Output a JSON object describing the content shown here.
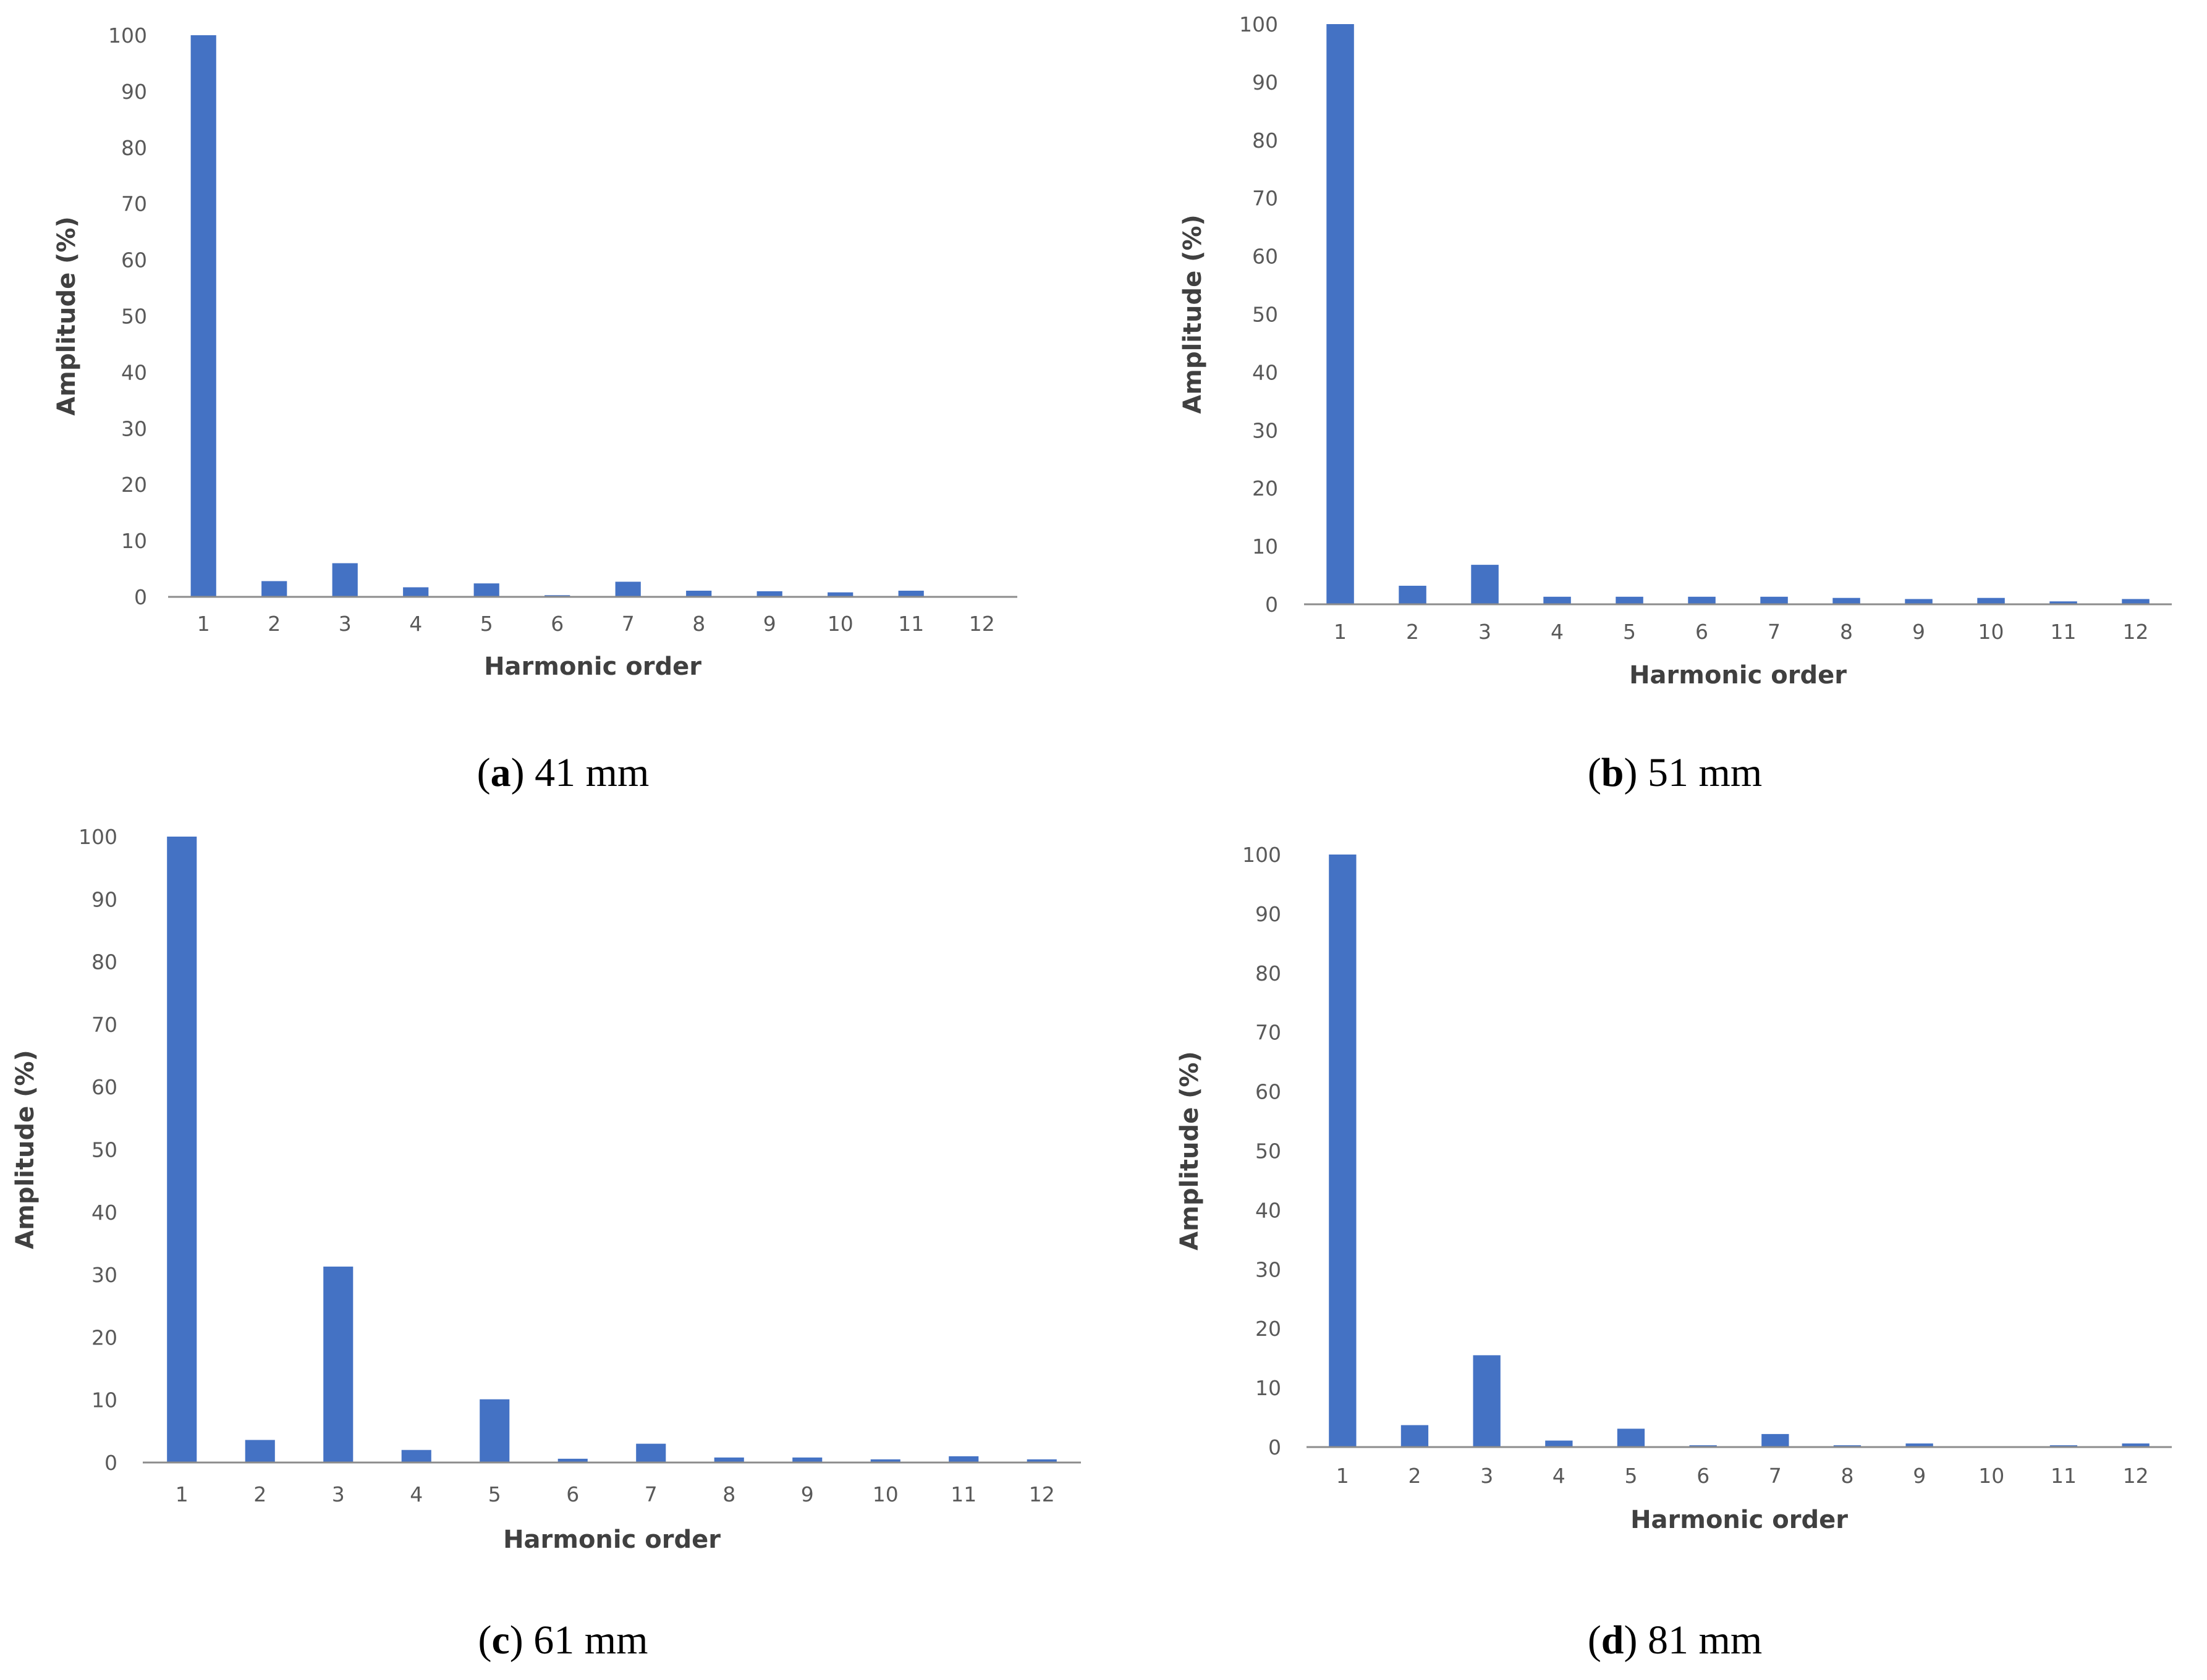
{
  "figure": {
    "panels": [
      {
        "id": "a",
        "caption_letter": "a",
        "caption_text": "41 mm"
      },
      {
        "id": "b",
        "caption_letter": "b",
        "caption_text": "51 mm"
      },
      {
        "id": "c",
        "caption_letter": "c",
        "caption_text": "61 mm"
      },
      {
        "id": "d",
        "caption_letter": "d",
        "caption_text": "81 mm"
      }
    ]
  },
  "colors": {
    "bar": "#4472C4",
    "axis": "#8C8C8C",
    "tick_text": "#595959",
    "title_text": "#404040"
  },
  "chart_data": [
    {
      "panel": "a",
      "type": "bar",
      "title": "",
      "xlabel": "Harmonic order",
      "ylabel": "Amplitude (%)",
      "categories": [
        "1",
        "2",
        "3",
        "4",
        "5",
        "6",
        "7",
        "8",
        "9",
        "10",
        "11",
        "12"
      ],
      "values": [
        100,
        2.8,
        6,
        1.7,
        2.4,
        0.3,
        2.7,
        1.1,
        1,
        0.8,
        1.1,
        0
      ],
      "ylim": [
        0,
        100
      ],
      "yticks": [
        0,
        10,
        20,
        30,
        40,
        50,
        60,
        70,
        80,
        90,
        100
      ],
      "grid": false,
      "legend": false
    },
    {
      "panel": "b",
      "type": "bar",
      "title": "",
      "xlabel": "Harmonic order",
      "ylabel": "Amplitude (%)",
      "categories": [
        "1",
        "2",
        "3",
        "4",
        "5",
        "6",
        "7",
        "8",
        "9",
        "10",
        "11",
        "12"
      ],
      "values": [
        100,
        3.2,
        6.8,
        1.3,
        1.3,
        1.3,
        1.3,
        1.1,
        0.9,
        1.1,
        0.5,
        0.9
      ],
      "ylim": [
        0,
        100
      ],
      "yticks": [
        0,
        10,
        20,
        30,
        40,
        50,
        60,
        70,
        80,
        90,
        100
      ],
      "grid": false,
      "legend": false
    },
    {
      "panel": "c",
      "type": "bar",
      "title": "",
      "xlabel": "Harmonic order",
      "ylabel": "Amplitude (%)",
      "categories": [
        "1",
        "2",
        "3",
        "4",
        "5",
        "6",
        "7",
        "8",
        "9",
        "10",
        "11",
        "12"
      ],
      "values": [
        100,
        3.6,
        31.3,
        2,
        10.1,
        0.6,
        3,
        0.8,
        0.8,
        0.5,
        1,
        0.5
      ],
      "ylim": [
        0,
        100
      ],
      "yticks": [
        0,
        10,
        20,
        30,
        40,
        50,
        60,
        70,
        80,
        90,
        100
      ],
      "grid": false,
      "legend": false
    },
    {
      "panel": "d",
      "type": "bar",
      "title": "",
      "xlabel": "Harmonic order",
      "ylabel": "Amplitude (%)",
      "categories": [
        "1",
        "2",
        "3",
        "4",
        "5",
        "6",
        "7",
        "8",
        "9",
        "10",
        "11",
        "12"
      ],
      "values": [
        100,
        3.7,
        15.5,
        1.1,
        3.1,
        0.3,
        2.2,
        0.3,
        0.6,
        0,
        0.3,
        0.6
      ],
      "ylim": [
        0,
        100
      ],
      "yticks": [
        0,
        10,
        20,
        30,
        40,
        50,
        60,
        70,
        80,
        90,
        100
      ],
      "grid": false,
      "legend": false
    }
  ]
}
